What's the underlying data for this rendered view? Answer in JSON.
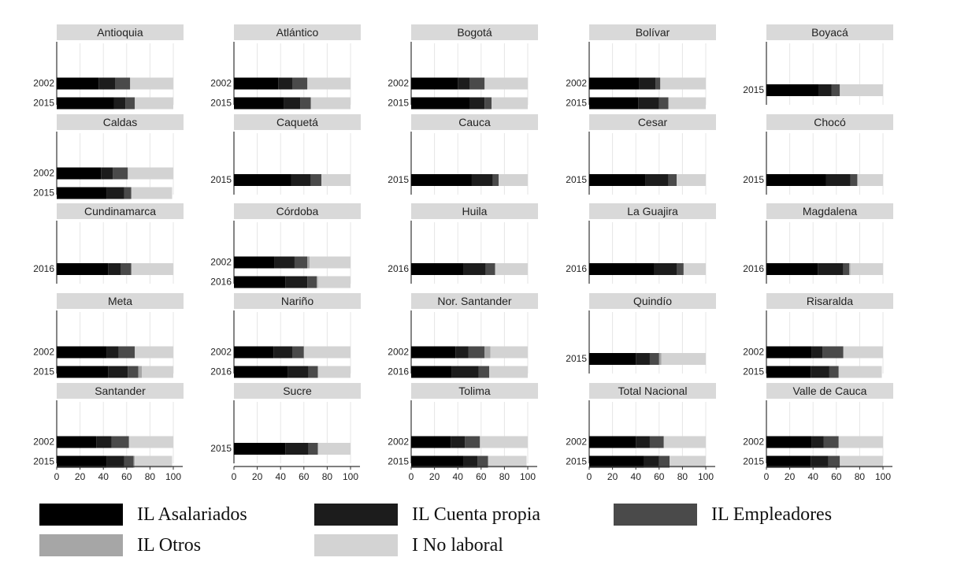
{
  "chart_data": {
    "type": "bar",
    "orientation": "horizontal",
    "stacked": true,
    "xlim": [
      0,
      100
    ],
    "x_ticks": [
      0,
      20,
      40,
      60,
      80,
      100
    ],
    "series": [
      {
        "name": "IL Asalariados",
        "color": "#000000"
      },
      {
        "name": "IL Cuenta propia",
        "color": "#1c1c1c"
      },
      {
        "name": "IL Empleadores",
        "color": "#4a4a4a"
      },
      {
        "name": "IL Otros",
        "color": "#a6a6a6"
      },
      {
        "name": "I No laboral",
        "color": "#d3d3d3"
      }
    ],
    "panels": [
      {
        "title": "Antioquia",
        "bars": [
          {
            "year": "2002",
            "values": [
              36,
              14,
              13,
              0,
              37
            ]
          },
          {
            "year": "2015",
            "values": [
              49,
              10,
              8,
              0,
              33
            ]
          }
        ]
      },
      {
        "title": "Atlántico",
        "bars": [
          {
            "year": "2002",
            "values": [
              38,
              12,
              13,
              0,
              37
            ]
          },
          {
            "year": "2015",
            "values": [
              43,
              14,
              9,
              0,
              34
            ]
          }
        ]
      },
      {
        "title": "Bogotá",
        "bars": [
          {
            "year": "2002",
            "values": [
              40,
              10,
              13,
              0,
              37
            ]
          },
          {
            "year": "2015",
            "values": [
              50,
              13,
              6,
              0,
              31
            ]
          }
        ]
      },
      {
        "title": "Bolívar",
        "bars": [
          {
            "year": "2002",
            "values": [
              43,
              14,
              4,
              0,
              39
            ]
          },
          {
            "year": "2015",
            "values": [
              42,
              18,
              8,
              0,
              32
            ]
          }
        ]
      },
      {
        "title": "Boyacá",
        "bars": [
          {
            "year": "2015",
            "values": [
              45,
              11,
              7,
              0,
              37
            ]
          }
        ]
      },
      {
        "title": "Caldas",
        "bars": [
          {
            "year": "2002",
            "values": [
              38,
              10,
              13,
              0,
              39
            ]
          },
          {
            "year": "2015",
            "values": [
              43,
              15,
              6,
              0,
              35
            ]
          }
        ]
      },
      {
        "title": "Caquetá",
        "bars": [
          {
            "year": "2015",
            "values": [
              49,
              17,
              9,
              0,
              25
            ]
          }
        ]
      },
      {
        "title": "Cauca",
        "bars": [
          {
            "year": "2015",
            "values": [
              52,
              18,
              5,
              0,
              25
            ]
          }
        ]
      },
      {
        "title": "Cesar",
        "bars": [
          {
            "year": "2015",
            "values": [
              48,
              20,
              7,
              0,
              25
            ]
          }
        ]
      },
      {
        "title": "Chocó",
        "bars": [
          {
            "year": "2015",
            "values": [
              51,
              21,
              6,
              0,
              22
            ]
          }
        ]
      },
      {
        "title": "Cundinamarca",
        "bars": [
          {
            "year": "2016",
            "values": [
              44,
              11,
              9,
              0,
              36
            ]
          }
        ]
      },
      {
        "title": "Córdoba",
        "bars": [
          {
            "year": "2002",
            "values": [
              35,
              17,
              11,
              2,
              35
            ]
          },
          {
            "year": "2016",
            "values": [
              44,
              19,
              8,
              1,
              28
            ]
          }
        ]
      },
      {
        "title": "Huila",
        "bars": [
          {
            "year": "2016",
            "values": [
              45,
              19,
              8,
              0,
              28
            ]
          }
        ]
      },
      {
        "title": "La Guajira",
        "bars": [
          {
            "year": "2016",
            "values": [
              56,
              19,
              6,
              0,
              19
            ]
          }
        ]
      },
      {
        "title": "Magdalena",
        "bars": [
          {
            "year": "2016",
            "values": [
              44,
              22,
              5,
              1,
              28
            ]
          }
        ]
      },
      {
        "title": "Meta",
        "bars": [
          {
            "year": "2002",
            "values": [
              43,
              10,
              14,
              0,
              33
            ]
          },
          {
            "year": "2015",
            "values": [
              44,
              17,
              9,
              3,
              27
            ]
          }
        ]
      },
      {
        "title": "Nariño",
        "bars": [
          {
            "year": "2002",
            "values": [
              34,
              16,
              10,
              0,
              40
            ]
          },
          {
            "year": "2016",
            "values": [
              46,
              18,
              8,
              0,
              28
            ]
          }
        ]
      },
      {
        "title": "Nor. Santander",
        "bars": [
          {
            "year": "2002",
            "values": [
              38,
              11,
              14,
              5,
              32
            ]
          },
          {
            "year": "2016",
            "values": [
              35,
              23,
              9,
              0,
              33
            ]
          }
        ]
      },
      {
        "title": "Quindío",
        "bars": [
          {
            "year": "2015",
            "values": [
              40,
              12,
              8,
              2,
              38
            ]
          }
        ]
      },
      {
        "title": "Risaralda",
        "bars": [
          {
            "year": "2002",
            "values": [
              39,
              9,
              18,
              0,
              34
            ]
          },
          {
            "year": "2015",
            "values": [
              38,
              16,
              8,
              0,
              37
            ]
          }
        ]
      },
      {
        "title": "Santander",
        "bars": [
          {
            "year": "2002",
            "values": [
              34,
              13,
              15,
              0,
              38
            ]
          },
          {
            "year": "2015",
            "values": [
              43,
              15,
              8,
              1,
              32
            ]
          }
        ]
      },
      {
        "title": "Sucre",
        "bars": [
          {
            "year": "2015",
            "values": [
              44,
              20,
              8,
              0,
              28
            ]
          }
        ]
      },
      {
        "title": "Tolima",
        "bars": [
          {
            "year": "2002",
            "values": [
              34,
              12,
              13,
              0,
              41
            ]
          },
          {
            "year": "2015",
            "values": [
              45,
              12,
              9,
              0,
              33
            ]
          }
        ]
      },
      {
        "title": "Total Nacional",
        "bars": [
          {
            "year": "2002",
            "values": [
              40,
              12,
              12,
              0,
              36
            ]
          },
          {
            "year": "2015",
            "values": [
              47,
              13,
              9,
              0,
              31
            ]
          }
        ]
      },
      {
        "title": "Valle de Cauca",
        "bars": [
          {
            "year": "2002",
            "values": [
              39,
              10,
              13,
              0,
              38
            ]
          },
          {
            "year": "2015",
            "values": [
              38,
              15,
              10,
              0,
              37
            ]
          }
        ]
      }
    ]
  }
}
